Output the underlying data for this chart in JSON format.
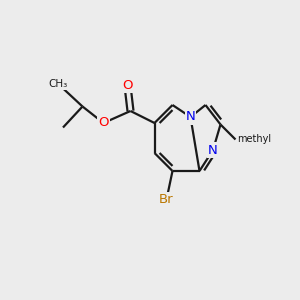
{
  "background_color": "#ececec",
  "bond_color": "#1a1a1a",
  "bond_width": 1.6,
  "atom_colors": {
    "O": "#ff0000",
    "N": "#0000ee",
    "Br": "#bb7700",
    "C": "#1a1a1a"
  },
  "figsize": [
    3.0,
    3.0
  ],
  "dpi": 100
}
